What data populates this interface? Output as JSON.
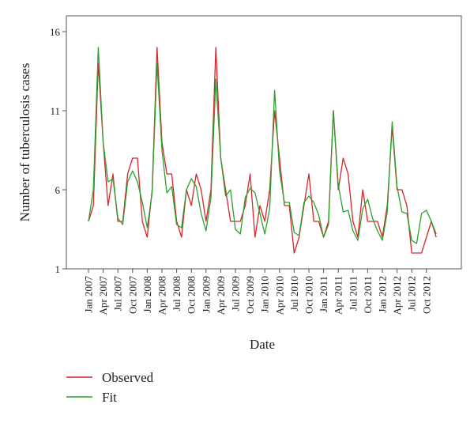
{
  "chart_data": {
    "type": "line",
    "xlabel": "Date",
    "ylabel": "Number of tuberculosis cases",
    "ylim": [
      1,
      17
    ],
    "yticks": [
      1,
      6,
      11,
      16
    ],
    "x_tick_labels": [
      "Jan 2007",
      "Apr 2007",
      "Jul 2007",
      "Oct 2007",
      "Jan 2008",
      "Apr 2008",
      "Jul 2008",
      "Oct 2008",
      "Jan 2009",
      "Apr 2009",
      "Jul 2009",
      "Oct 2009",
      "Jan 2010",
      "Apr 2010",
      "Jul 2010",
      "Oct 2010",
      "Jan 2011",
      "Apr 2011",
      "Jul 2011",
      "Oct 2011",
      "Jan 2012",
      "Apr 2012",
      "Jul 2012",
      "Oct 2012"
    ],
    "x_start": "Jan 2007",
    "x_end": "Jan 2013",
    "grid": false,
    "legend_position": "bottom-left",
    "series": [
      {
        "name": "Observed",
        "color": "#d7262b",
        "values": [
          4,
          5,
          14,
          9,
          5,
          7,
          4,
          4,
          7,
          8,
          8,
          4,
          3,
          6,
          15,
          9,
          7,
          7,
          4,
          3,
          6,
          5,
          7,
          6,
          4,
          6,
          15,
          8,
          6,
          4,
          4,
          4,
          5,
          7,
          3,
          5,
          4,
          6,
          11,
          8,
          5,
          5,
          2,
          3,
          5,
          7,
          4,
          4,
          3,
          4,
          11,
          6,
          8,
          7,
          4,
          3,
          6,
          4,
          4,
          4,
          3,
          5,
          10,
          6,
          6,
          5,
          2,
          2,
          2,
          3,
          4,
          3
        ]
      },
      {
        "name": "Fit",
        "color": "#2ca02c",
        "values": [
          4,
          6,
          15,
          9,
          6.5,
          6.7,
          4.2,
          3.8,
          6.5,
          7.2,
          6.5,
          5.2,
          3.6,
          5.8,
          14,
          8.5,
          5.8,
          6.2,
          3.8,
          3.6,
          6,
          6.7,
          6.2,
          4.5,
          3.4,
          5.5,
          13,
          8,
          5.6,
          6,
          3.5,
          3.2,
          5.5,
          6.1,
          5.8,
          4.5,
          3.2,
          4.8,
          12.3,
          7.2,
          5.2,
          5.2,
          3.3,
          3.1,
          5.2,
          5.6,
          5.2,
          4.4,
          3,
          3.8,
          11,
          6.3,
          4.6,
          4.7,
          3.4,
          2.8,
          4.8,
          5.4,
          4.2,
          3.4,
          2.8,
          4.6,
          10.3,
          6.2,
          4.6,
          4.5,
          2.8,
          2.6,
          4.5,
          4.7,
          4,
          3.2
        ]
      }
    ]
  }
}
